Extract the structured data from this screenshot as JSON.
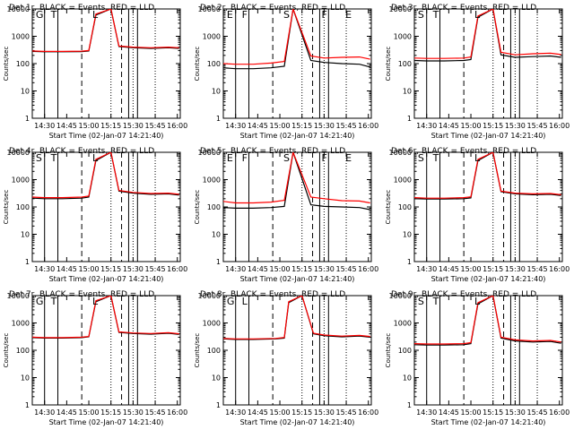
{
  "colors": {
    "events": "#000000",
    "lld": "#ff0000"
  },
  "common": {
    "ylabel": "Counts/sec",
    "xlabel": "Start Time (02-Jan-07 14:21:40)",
    "xticks": [
      "14:30",
      "14:45",
      "15:00",
      "15:15",
      "15:30",
      "15:45",
      "16:00"
    ],
    "yticks": [
      "1",
      "10",
      "100",
      "1000",
      "10000"
    ],
    "x_range_hours": [
      14.3611,
      16.0333
    ],
    "y_range": [
      1,
      10000
    ],
    "y_scale": "log"
  },
  "chart_data": [
    {
      "type": "line",
      "title": "Det 1r, BLACK = Events, RED = LLD",
      "markers": [
        "G",
        "T",
        "L"
      ],
      "series": [
        {
          "key": "events",
          "x": [
            14.361,
            14.5,
            14.7,
            14.92,
            15.0,
            15.08,
            15.25,
            15.34,
            15.5,
            15.7,
            15.9,
            16.02
          ],
          "values": [
            280,
            270,
            270,
            275,
            290,
            6000,
            10000,
            420,
            380,
            360,
            380,
            360
          ]
        },
        {
          "key": "lld",
          "x": [
            14.361,
            14.5,
            14.7,
            14.92,
            15.0,
            15.08,
            15.25,
            15.34,
            15.5,
            15.7,
            15.9,
            16.02
          ],
          "values": [
            290,
            280,
            280,
            285,
            300,
            6500,
            10000,
            440,
            400,
            380,
            400,
            380
          ]
        }
      ]
    },
    {
      "type": "line",
      "title": "Det 2r, BLACK = Events, RED = LLD",
      "markers": [
        "E",
        "F",
        "S",
        "F",
        "E"
      ],
      "series": [
        {
          "key": "events",
          "x": [
            14.361,
            14.5,
            14.7,
            14.9,
            15.05,
            15.15,
            15.35,
            15.5,
            15.7,
            15.9,
            16.02
          ],
          "values": [
            70,
            65,
            65,
            70,
            80,
            10000,
            130,
            110,
            100,
            95,
            75
          ]
        },
        {
          "key": "lld",
          "x": [
            14.361,
            14.5,
            14.7,
            14.9,
            15.05,
            15.15,
            15.35,
            15.5,
            15.7,
            15.9,
            16.02
          ],
          "values": [
            100,
            95,
            95,
            105,
            120,
            10000,
            190,
            160,
            170,
            175,
            145
          ]
        }
      ]
    },
    {
      "type": "line",
      "title": "Det 3r, BLACK = Events, RED = LLD",
      "markers": [
        "S",
        "T",
        "L"
      ],
      "series": [
        {
          "key": "events",
          "x": [
            14.361,
            14.5,
            14.7,
            14.92,
            15.0,
            15.08,
            15.25,
            15.34,
            15.5,
            15.7,
            15.9,
            16.02
          ],
          "values": [
            130,
            125,
            125,
            130,
            140,
            5000,
            10000,
            210,
            170,
            180,
            190,
            170
          ]
        },
        {
          "key": "lld",
          "x": [
            14.361,
            14.5,
            14.7,
            14.92,
            15.0,
            15.08,
            15.25,
            15.34,
            15.5,
            15.7,
            15.9,
            16.02
          ],
          "values": [
            160,
            155,
            155,
            160,
            175,
            5500,
            10000,
            260,
            210,
            230,
            240,
            215
          ]
        }
      ]
    },
    {
      "type": "line",
      "title": "Det 4r, BLACK = Events, RED = LLD",
      "markers": [
        "S",
        "T",
        "L"
      ],
      "series": [
        {
          "key": "events",
          "x": [
            14.361,
            14.5,
            14.7,
            14.92,
            15.0,
            15.08,
            15.25,
            15.34,
            15.5,
            15.7,
            15.9,
            16.02
          ],
          "values": [
            210,
            200,
            200,
            210,
            230,
            5000,
            10000,
            380,
            320,
            290,
            300,
            270
          ]
        },
        {
          "key": "lld",
          "x": [
            14.361,
            14.5,
            14.7,
            14.92,
            15.0,
            15.08,
            15.25,
            15.34,
            15.5,
            15.7,
            15.9,
            16.02
          ],
          "values": [
            230,
            220,
            220,
            230,
            250,
            5500,
            10000,
            400,
            340,
            310,
            320,
            290
          ]
        }
      ]
    },
    {
      "type": "line",
      "title": "Det 5r, BLACK = Events, RED = LLD",
      "markers": [
        "E",
        "F",
        "S",
        "F",
        "E"
      ],
      "series": [
        {
          "key": "events",
          "x": [
            14.361,
            14.5,
            14.7,
            14.9,
            15.05,
            15.15,
            15.35,
            15.5,
            15.7,
            15.9,
            16.02
          ],
          "values": [
            95,
            90,
            90,
            95,
            105,
            10000,
            120,
            105,
            100,
            95,
            80
          ]
        },
        {
          "key": "lld",
          "x": [
            14.361,
            14.5,
            14.7,
            14.9,
            15.05,
            15.15,
            15.35,
            15.5,
            15.7,
            15.9,
            16.02
          ],
          "values": [
            160,
            140,
            140,
            150,
            175,
            10000,
            230,
            200,
            170,
            165,
            140
          ]
        }
      ]
    },
    {
      "type": "line",
      "title": "Det 6r, BLACK = Events, RED = LLD",
      "markers": [
        "S",
        "T",
        "L"
      ],
      "series": [
        {
          "key": "events",
          "x": [
            14.361,
            14.5,
            14.7,
            14.92,
            15.0,
            15.08,
            15.25,
            15.34,
            15.5,
            15.7,
            15.9,
            16.02
          ],
          "values": [
            200,
            195,
            195,
            200,
            215,
            5000,
            10000,
            360,
            300,
            280,
            290,
            260
          ]
        },
        {
          "key": "lld",
          "x": [
            14.361,
            14.5,
            14.7,
            14.92,
            15.0,
            15.08,
            15.25,
            15.34,
            15.5,
            15.7,
            15.9,
            16.02
          ],
          "values": [
            220,
            210,
            210,
            220,
            235,
            5500,
            10000,
            380,
            320,
            300,
            310,
            280
          ]
        }
      ]
    },
    {
      "type": "line",
      "title": "Det 7r, BLACK = Events, RED = LLD",
      "markers": [
        "G",
        "T",
        "L"
      ],
      "series": [
        {
          "key": "events",
          "x": [
            14.361,
            14.5,
            14.7,
            14.92,
            15.0,
            15.08,
            15.25,
            15.34,
            15.5,
            15.7,
            15.9,
            16.02
          ],
          "values": [
            290,
            280,
            280,
            290,
            310,
            6000,
            10000,
            450,
            410,
            390,
            420,
            380
          ]
        },
        {
          "key": "lld",
          "x": [
            14.361,
            14.5,
            14.7,
            14.92,
            15.0,
            15.08,
            15.25,
            15.34,
            15.5,
            15.7,
            15.9,
            16.02
          ],
          "values": [
            300,
            290,
            290,
            300,
            320,
            6500,
            10000,
            470,
            430,
            410,
            440,
            400
          ]
        }
      ]
    },
    {
      "type": "line",
      "title": "Det 8r, BLACK = Events, RED = LLD",
      "markers": [
        "G",
        "L"
      ],
      "series": [
        {
          "key": "events",
          "x": [
            14.361,
            14.5,
            14.7,
            14.95,
            15.05,
            15.1,
            15.25,
            15.38,
            15.5,
            15.7,
            15.9,
            16.02
          ],
          "values": [
            260,
            250,
            250,
            260,
            280,
            5500,
            10000,
            400,
            340,
            310,
            330,
            300
          ]
        },
        {
          "key": "lld",
          "x": [
            14.361,
            14.5,
            14.7,
            14.95,
            15.05,
            15.1,
            15.25,
            15.38,
            15.5,
            15.7,
            15.9,
            16.02
          ],
          "values": [
            270,
            260,
            260,
            270,
            295,
            6000,
            10000,
            420,
            360,
            330,
            350,
            320
          ]
        }
      ]
    },
    {
      "type": "line",
      "title": "Det 9r, BLACK = Events, RED = LLD",
      "markers": [
        "S",
        "T",
        "L"
      ],
      "series": [
        {
          "key": "events",
          "x": [
            14.361,
            14.5,
            14.7,
            14.92,
            15.0,
            15.08,
            15.25,
            15.34,
            15.5,
            15.7,
            15.9,
            16.02
          ],
          "values": [
            160,
            155,
            155,
            160,
            175,
            5000,
            10000,
            280,
            220,
            200,
            210,
            180
          ]
        },
        {
          "key": "lld",
          "x": [
            14.361,
            14.5,
            14.7,
            14.92,
            15.0,
            15.08,
            15.25,
            15.34,
            15.5,
            15.7,
            15.9,
            16.02
          ],
          "values": [
            175,
            170,
            170,
            175,
            190,
            5500,
            10000,
            300,
            240,
            220,
            230,
            200
          ]
        }
      ]
    }
  ]
}
